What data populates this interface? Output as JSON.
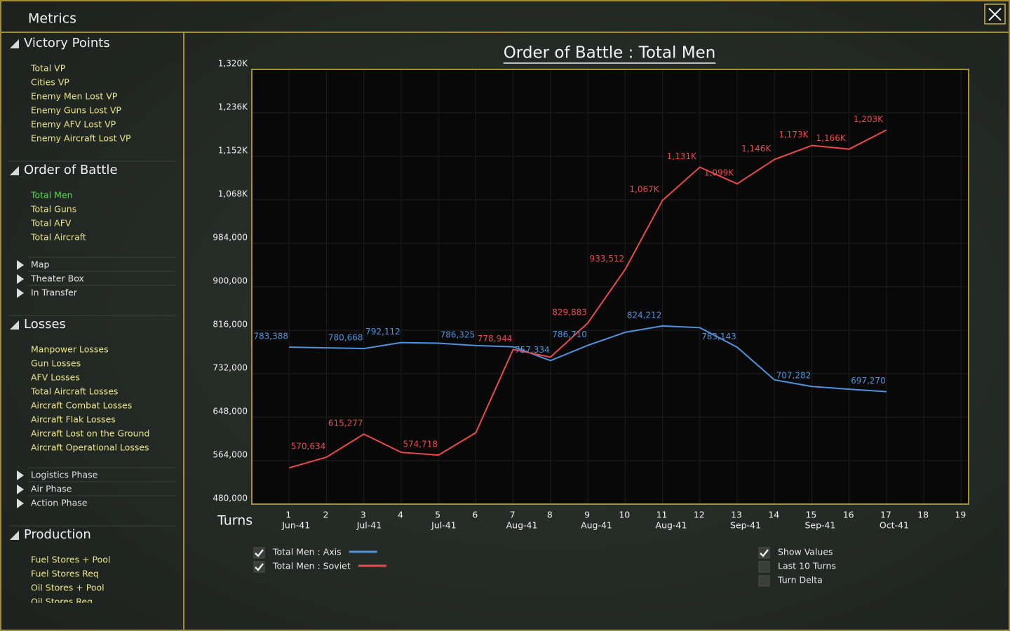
{
  "window": {
    "title": "Metrics"
  },
  "sidebar": {
    "selected": "Total Men",
    "sections": [
      {
        "title": "Victory Points",
        "items": [
          "Total VP",
          "Cities VP",
          "Enemy Men Lost VP",
          "Enemy Guns Lost VP",
          "Enemy AFV Lost VP",
          "Enemy Aircraft Lost VP"
        ]
      },
      {
        "title": "Order of Battle",
        "items": [
          "Total Men",
          "Total Guns",
          "Total AFV",
          "Total Aircraft"
        ],
        "subitems": [
          "Map",
          "Theater Box",
          "In Transfer"
        ]
      },
      {
        "title": "Losses",
        "items": [
          "Manpower Losses",
          "Gun Losses",
          "AFV Losses",
          "Total Aircraft Losses",
          "Aircraft Combat Losses",
          "Aircraft Flak Losses",
          "Aircraft Lost on the Ground",
          "Aircraft Operational Losses"
        ],
        "subitems": [
          "Logistics Phase",
          "Air Phase",
          "Action Phase"
        ]
      },
      {
        "title": "Production",
        "items": [
          "Fuel Stores + Pool",
          "Fuel Stores Req",
          "Oil Stores + Pool",
          "Oil Stores Req"
        ]
      }
    ]
  },
  "chart_data": {
    "type": "line",
    "title": "Order of Battle : Total Men",
    "x_label": "Turns",
    "x": [
      1,
      2,
      3,
      4,
      5,
      6,
      7,
      8,
      9,
      10,
      11,
      12,
      13,
      14,
      15,
      16,
      17
    ],
    "xlim": [
      0,
      19.2
    ],
    "xticks": [
      1,
      2,
      3,
      4,
      5,
      6,
      7,
      8,
      9,
      10,
      11,
      12,
      13,
      14,
      15,
      16,
      17,
      18,
      19
    ],
    "xtick_dates": [
      "Jun-41",
      null,
      "Jul-41",
      null,
      "Jul-41",
      null,
      "Aug-41",
      null,
      "Aug-41",
      null,
      "Aug-41",
      null,
      "Sep-41",
      null,
      "Sep-41",
      null,
      "Oct-41",
      null,
      null
    ],
    "ylim": [
      480000,
      1320000
    ],
    "yticks": [
      {
        "value": 480000,
        "label": "480,000"
      },
      {
        "value": 564000,
        "label": "564,000"
      },
      {
        "value": 648000,
        "label": "648,000"
      },
      {
        "value": 732000,
        "label": "732,000"
      },
      {
        "value": 816000,
        "label": "816,000"
      },
      {
        "value": 900000,
        "label": "900,000"
      },
      {
        "value": 984000,
        "label": "984,000"
      },
      {
        "value": 1068000,
        "label": "1,068K"
      },
      {
        "value": 1152000,
        "label": "1,152K"
      },
      {
        "value": 1236000,
        "label": "1,236K"
      },
      {
        "value": 1320000,
        "label": "1,320K"
      }
    ],
    "grid": true,
    "series": [
      {
        "name": "Total Men : Axis",
        "color": "#4f93dc",
        "checked": true,
        "values": [
          783388,
          782000,
          780668,
          792112,
          791000,
          786325,
          784000,
          757334,
          786710,
          812000,
          824212,
          821000,
          783143,
          720000,
          707282,
          702000,
          697270
        ],
        "value_labels": [
          "783,388",
          null,
          "780,668",
          "792,112",
          null,
          "786,325",
          null,
          "757,334",
          "786,710",
          null,
          "824,212",
          null,
          "783,143",
          null,
          "707,282",
          null,
          "697,270"
        ]
      },
      {
        "name": "Total Men : Soviet",
        "color": "#ea4a4a",
        "checked": true,
        "values": [
          550000,
          570634,
          615277,
          580000,
          574718,
          618000,
          778944,
          764000,
          829883,
          933512,
          1067000,
          1131000,
          1099000,
          1146000,
          1173000,
          1166000,
          1203000
        ],
        "value_labels": [
          null,
          "570,634",
          "615,277",
          null,
          "574,718",
          null,
          "778,944",
          null,
          "829,883",
          "933,512",
          "1,067K",
          "1,131K",
          "1,099K",
          "1,146K",
          "1,173K",
          "1,166K",
          "1,203K"
        ]
      }
    ],
    "options": [
      {
        "label": "Show Values",
        "checked": true
      },
      {
        "label": "Last 10 Turns",
        "checked": false
      },
      {
        "label": "Turn Delta",
        "checked": false
      }
    ]
  }
}
